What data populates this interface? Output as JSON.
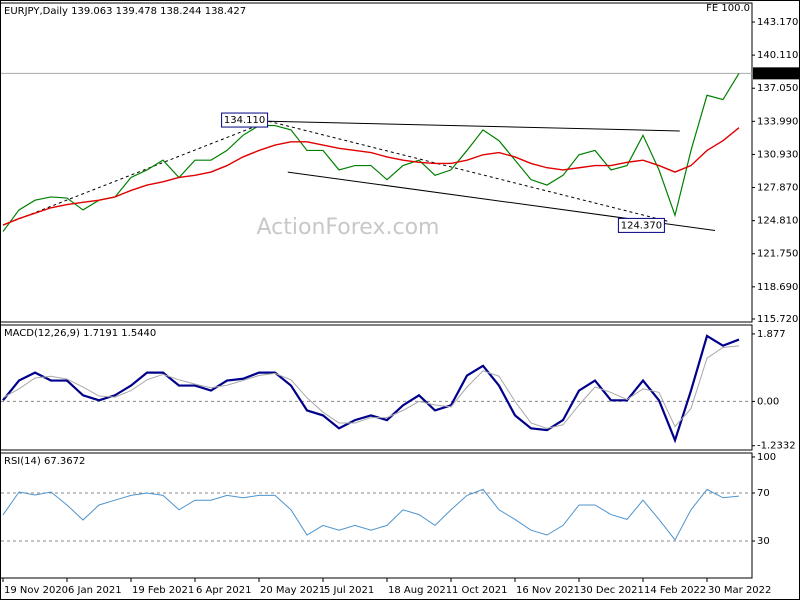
{
  "chart_data": [
    {
      "type": "line",
      "title": "EURJPY,Daily  139.063 139.478 138.244 138.427",
      "fe_label": "FE 100.0",
      "watermark": "ActionForex.com",
      "categories": [
        "19 Nov 2020",
        null,
        null,
        null,
        "6 Jan 2021",
        null,
        null,
        null,
        "19 Feb 2021",
        null,
        null,
        null,
        "6 Apr 2021",
        null,
        null,
        null,
        "20 May 2021",
        null,
        null,
        null,
        "5 Jul 2021",
        null,
        null,
        null,
        "18 Aug 2021",
        null,
        null,
        null,
        "1 Oct 2021",
        null,
        null,
        null,
        "16 Nov 2021",
        null,
        null,
        null,
        "30 Dec 2021",
        null,
        null,
        null,
        "14 Feb 2022",
        null,
        null,
        null,
        "30 Mar 2022",
        null,
        null
      ],
      "series": [
        {
          "name": "Close",
          "color": "#008000",
          "values": [
            123.8,
            125.8,
            126.7,
            127.0,
            126.9,
            125.8,
            126.7,
            127.0,
            128.8,
            129.5,
            130.4,
            128.8,
            130.4,
            130.4,
            131.3,
            132.7,
            133.6,
            133.6,
            133.2,
            131.3,
            131.3,
            129.5,
            129.9,
            129.9,
            128.6,
            129.9,
            130.4,
            129.0,
            129.5,
            131.3,
            133.2,
            132.2,
            130.4,
            128.6,
            128.1,
            129.0,
            130.9,
            131.3,
            129.5,
            129.9,
            132.7,
            129.5,
            125.3,
            131.3,
            136.4,
            136.0,
            138.43
          ]
        },
        {
          "name": "MA",
          "color": "#e00000",
          "values": [
            124.4,
            125.0,
            125.5,
            126.0,
            126.3,
            126.5,
            126.7,
            127.0,
            127.6,
            128.1,
            128.4,
            128.8,
            129.0,
            129.3,
            129.9,
            130.7,
            131.3,
            131.8,
            132.1,
            132.1,
            131.8,
            131.5,
            131.3,
            131.1,
            130.7,
            130.4,
            130.2,
            130.1,
            130.1,
            130.4,
            130.9,
            131.1,
            130.7,
            130.1,
            129.7,
            129.5,
            129.7,
            129.9,
            129.9,
            130.2,
            130.4,
            129.9,
            129.3,
            129.9,
            131.3,
            132.2,
            133.4
          ]
        }
      ],
      "ylim": [
        115.44,
        144.93
      ],
      "yticks": [
        {
          "value": 115.72,
          "label": "115.720"
        },
        {
          "value": 118.69,
          "label": "118.690"
        },
        {
          "value": 121.75,
          "label": "121.750"
        },
        {
          "value": 124.81,
          "label": "124.810"
        },
        {
          "value": 127.87,
          "label": "127.870"
        },
        {
          "value": 130.93,
          "label": "130.930"
        },
        {
          "value": 133.99,
          "label": "133.990"
        },
        {
          "value": 137.05,
          "label": "137.050"
        },
        {
          "value": 140.11,
          "label": "140.110"
        },
        {
          "value": 143.17,
          "label": "143.170"
        }
      ],
      "current_price": 138.427,
      "trendlines": [
        {
          "style": "solid",
          "x": [
            16.6,
            42.3
          ],
          "y": [
            134.0,
            133.1
          ]
        },
        {
          "style": "solid",
          "x": [
            17.8,
            44.5
          ],
          "y": [
            129.3,
            123.9
          ]
        },
        {
          "style": "dashed",
          "x": [
            0,
            16.6
          ],
          "y": [
            124.4,
            134.0
          ]
        },
        {
          "style": "dashed",
          "x": [
            16.6,
            41.7
          ],
          "y": [
            134.0,
            124.7
          ]
        }
      ],
      "annotations": [
        {
          "value": 134.11,
          "label": "134.110",
          "x": 15.1
        },
        {
          "value": 124.37,
          "label": "124.370",
          "x": 39.9
        }
      ]
    },
    {
      "type": "line",
      "title": "MACD(12,26,9) 1.7191 1.5440",
      "series": [
        {
          "name": "MACD",
          "color": "#00008b",
          "values": [
            0.03,
            0.58,
            0.8,
            0.58,
            0.58,
            0.17,
            0.03,
            0.17,
            0.44,
            0.8,
            0.8,
            0.44,
            0.44,
            0.3,
            0.58,
            0.63,
            0.8,
            0.8,
            0.44,
            -0.25,
            -0.39,
            -0.75,
            -0.52,
            -0.39,
            -0.52,
            -0.11,
            0.17,
            -0.25,
            -0.11,
            0.72,
            0.99,
            0.44,
            -0.39,
            -0.75,
            -0.8,
            -0.52,
            0.3,
            0.58,
            0.03,
            0.03,
            0.58,
            0.03,
            -1.08,
            0.3,
            1.82,
            1.55,
            1.72
          ]
        },
        {
          "name": "Signal",
          "color": "#a9a9a9",
          "values": [
            0.1,
            0.35,
            0.65,
            0.7,
            0.62,
            0.4,
            0.15,
            0.12,
            0.3,
            0.6,
            0.75,
            0.6,
            0.48,
            0.38,
            0.45,
            0.58,
            0.72,
            0.78,
            0.6,
            0.1,
            -0.3,
            -0.6,
            -0.6,
            -0.45,
            -0.45,
            -0.25,
            0.0,
            -0.1,
            -0.15,
            0.4,
            0.85,
            0.7,
            0.0,
            -0.6,
            -0.75,
            -0.65,
            -0.1,
            0.4,
            0.25,
            0.05,
            0.35,
            0.25,
            -0.7,
            -0.2,
            1.2,
            1.5,
            1.544
          ]
        }
      ],
      "ylim": [
        -1.352,
        2.125
      ],
      "yticks": [
        1.877,
        {
          "value": 0,
          "label": "0.00"
        },
        -1.2332
      ],
      "levels": [
        0
      ]
    },
    {
      "type": "line",
      "title": "RSI(14) 67.3672",
      "series": [
        {
          "name": "RSI",
          "color": "#4f94cd",
          "values": [
            51.7,
            70.8,
            68.3,
            70.8,
            60,
            47.5,
            60,
            64,
            68,
            70,
            68,
            56,
            64,
            64,
            68,
            66,
            68,
            68,
            56,
            35,
            43,
            39,
            43,
            39,
            43,
            56,
            52,
            43,
            56,
            68,
            73,
            56,
            48,
            39,
            35,
            43,
            60,
            60,
            52,
            48,
            64,
            48,
            31,
            56,
            73,
            66,
            67.37
          ]
        }
      ],
      "ylim": [
        -0.8,
        103.3
      ],
      "yticks": [
        100,
        70,
        30
      ],
      "levels": [
        70,
        30
      ]
    }
  ]
}
